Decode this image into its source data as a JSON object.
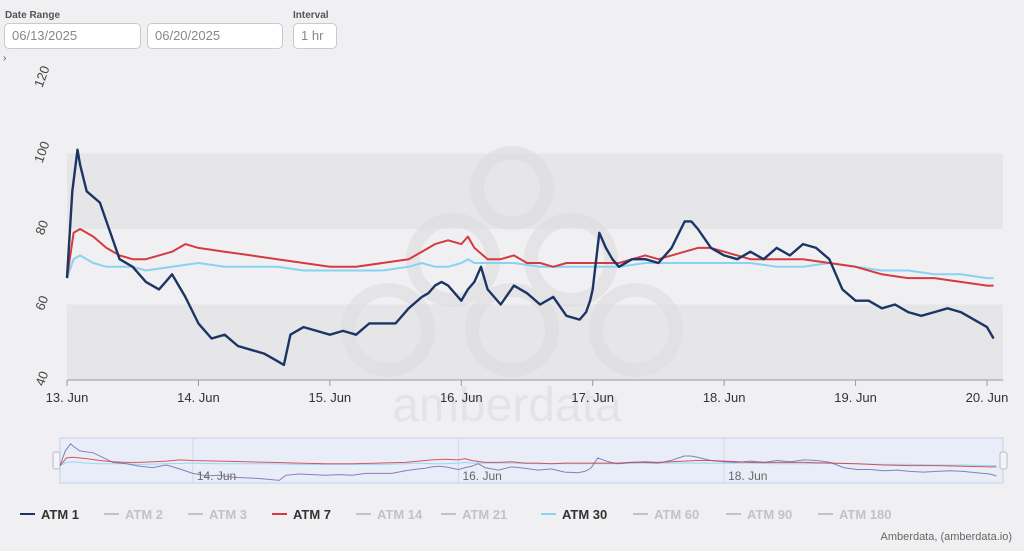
{
  "controls": {
    "date_range_label": "Date Range",
    "start_date": "06/13/2025",
    "end_date": "06/20/2025",
    "interval_label": "Interval",
    "interval": "1 hr",
    "toggle_glyph": "›"
  },
  "watermark_text": "amberdata",
  "credit": "Amberdata, (amberdata.io)",
  "colors": {
    "atm1": "#1c3565",
    "atm7": "#d43a3f",
    "atm30": "#88d3f2",
    "inactive": "#c2c2c8"
  },
  "chart_data": {
    "type": "line",
    "title": "",
    "xlabel": "",
    "ylabel": "",
    "xlim": [
      13,
      20.1
    ],
    "ylim": [
      40,
      120
    ],
    "yticks": [
      40,
      60,
      80,
      100,
      120
    ],
    "x_tick_values": [
      13,
      14,
      15,
      16,
      17,
      18,
      19,
      20
    ],
    "x_tick_labels": [
      "13. Jun",
      "14. Jun",
      "15. Jun",
      "16. Jun",
      "17. Jun",
      "18. Jun",
      "19. Jun",
      "20. Jun"
    ],
    "navigator_tick_labels": [
      "14. Jun",
      "16. Jun",
      "18. Jun"
    ],
    "navigator_tick_values": [
      14,
      16,
      18
    ],
    "series": [
      {
        "name": "ATM 1",
        "color": "#1c3565",
        "visible": true,
        "x": [
          13.0,
          13.04,
          13.08,
          13.1,
          13.15,
          13.25,
          13.32,
          13.4,
          13.5,
          13.6,
          13.7,
          13.75,
          13.8,
          13.85,
          13.9,
          14.0,
          14.1,
          14.2,
          14.3,
          14.4,
          14.5,
          14.6,
          14.65,
          14.7,
          14.8,
          14.9,
          15.0,
          15.1,
          15.2,
          15.3,
          15.4,
          15.5,
          15.6,
          15.7,
          15.75,
          15.8,
          15.85,
          15.9,
          16.0,
          16.05,
          16.1,
          16.15,
          16.2,
          16.3,
          16.4,
          16.5,
          16.6,
          16.7,
          16.8,
          16.9,
          16.95,
          16.98,
          17.0,
          17.05,
          17.1,
          17.15,
          17.2,
          17.3,
          17.4,
          17.5,
          17.6,
          17.7,
          17.75,
          17.8,
          17.9,
          18.0,
          18.1,
          18.2,
          18.3,
          18.4,
          18.5,
          18.6,
          18.7,
          18.8,
          18.9,
          19.0,
          19.1,
          19.2,
          19.3,
          19.4,
          19.5,
          19.6,
          19.7,
          19.8,
          19.9,
          20.0,
          20.05
        ],
        "y": [
          67,
          90,
          101,
          97,
          90,
          87,
          80,
          72,
          70,
          66,
          64,
          66,
          68,
          65,
          62,
          55,
          51,
          52,
          49,
          48,
          47,
          45,
          44,
          52,
          54,
          53,
          52,
          53,
          52,
          55,
          55,
          55,
          59,
          62,
          63,
          65,
          66,
          65,
          61,
          64,
          66,
          70,
          64,
          60,
          65,
          63,
          60,
          62,
          57,
          56,
          58,
          61,
          64,
          79,
          75,
          72,
          70,
          72,
          72,
          71,
          75,
          82,
          82,
          80,
          75,
          73,
          72,
          74,
          72,
          75,
          73,
          76,
          75,
          72,
          64,
          61,
          61,
          59,
          60,
          58,
          57,
          58,
          59,
          58,
          56,
          54,
          51
        ]
      },
      {
        "name": "ATM 2",
        "color": "#c2c2c8",
        "visible": false,
        "x": [],
        "y": []
      },
      {
        "name": "ATM 3",
        "color": "#c2c2c8",
        "visible": false,
        "x": [],
        "y": []
      },
      {
        "name": "ATM 7",
        "color": "#d43a3f",
        "visible": true,
        "x": [
          13.0,
          13.05,
          13.1,
          13.2,
          13.3,
          13.4,
          13.5,
          13.6,
          13.7,
          13.8,
          13.9,
          14.0,
          14.2,
          14.4,
          14.6,
          14.8,
          15.0,
          15.2,
          15.4,
          15.6,
          15.7,
          15.8,
          15.9,
          16.0,
          16.05,
          16.1,
          16.2,
          16.3,
          16.4,
          16.5,
          16.6,
          16.7,
          16.8,
          16.9,
          17.0,
          17.1,
          17.2,
          17.3,
          17.4,
          17.5,
          17.6,
          17.7,
          17.8,
          17.9,
          18.0,
          18.2,
          18.4,
          18.6,
          18.8,
          19.0,
          19.2,
          19.4,
          19.6,
          19.8,
          20.0,
          20.05
        ],
        "y": [
          67,
          79,
          80,
          78,
          75,
          73,
          72,
          72,
          73,
          74,
          76,
          75,
          74,
          73,
          72,
          71,
          70,
          70,
          71,
          72,
          74,
          76,
          77,
          76,
          78,
          75,
          72,
          72,
          73,
          71,
          71,
          70,
          71,
          71,
          71,
          71,
          71,
          72,
          73,
          72,
          73,
          74,
          75,
          75,
          74,
          72,
          72,
          72,
          71,
          70,
          68,
          67,
          67,
          66,
          65,
          65
        ]
      },
      {
        "name": "ATM 14",
        "color": "#c2c2c8",
        "visible": false,
        "x": [],
        "y": []
      },
      {
        "name": "ATM 21",
        "color": "#c2c2c8",
        "visible": false,
        "x": [],
        "y": []
      },
      {
        "name": "ATM 30",
        "color": "#88d3f2",
        "visible": true,
        "x": [
          13.0,
          13.05,
          13.1,
          13.2,
          13.3,
          13.4,
          13.5,
          13.6,
          13.8,
          14.0,
          14.2,
          14.4,
          14.6,
          14.8,
          15.0,
          15.2,
          15.4,
          15.6,
          15.7,
          15.8,
          15.9,
          16.0,
          16.05,
          16.1,
          16.2,
          16.4,
          16.6,
          16.8,
          17.0,
          17.2,
          17.4,
          17.6,
          17.8,
          18.0,
          18.2,
          18.4,
          18.6,
          18.8,
          19.0,
          19.2,
          19.4,
          19.6,
          19.8,
          20.0,
          20.05
        ],
        "y": [
          67,
          72,
          73,
          71,
          70,
          70,
          70,
          69,
          70,
          71,
          70,
          70,
          70,
          69,
          69,
          69,
          69,
          70,
          71,
          70,
          70,
          71,
          72,
          71,
          71,
          71,
          70,
          70,
          70,
          70,
          71,
          71,
          71,
          71,
          71,
          70,
          70,
          71,
          70,
          69,
          69,
          68,
          68,
          67,
          67
        ]
      },
      {
        "name": "ATM 60",
        "color": "#c2c2c8",
        "visible": false,
        "x": [],
        "y": []
      },
      {
        "name": "ATM 90",
        "color": "#c2c2c8",
        "visible": false,
        "x": [],
        "y": []
      },
      {
        "name": "ATM 180",
        "color": "#c2c2c8",
        "visible": false,
        "x": [],
        "y": []
      }
    ],
    "legend_position": "bottom-left",
    "grid": "alternating horizontal bands"
  }
}
